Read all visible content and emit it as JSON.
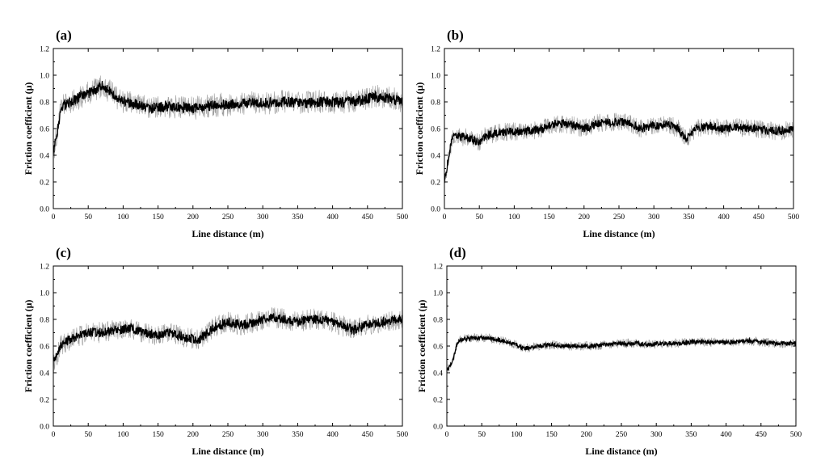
{
  "chart_data": [
    {
      "type": "line",
      "panel_label": "(a)",
      "xlabel": "Line distance (m)",
      "ylabel": "Friction coefficient (μ)",
      "xlim": [
        0,
        500
      ],
      "ylim": [
        0,
        1.2
      ],
      "xticks": [
        0,
        50,
        100,
        150,
        200,
        250,
        300,
        350,
        400,
        450,
        500
      ],
      "yticks": [
        0.0,
        0.2,
        0.4,
        0.6,
        0.8,
        1.0,
        1.2
      ],
      "x": [
        0,
        5,
        10,
        15,
        25,
        40,
        55,
        70,
        85,
        100,
        120,
        140,
        160,
        180,
        200,
        220,
        240,
        260,
        280,
        300,
        320,
        340,
        360,
        380,
        400,
        420,
        440,
        460,
        480,
        500
      ],
      "values": [
        0.42,
        0.55,
        0.72,
        0.78,
        0.8,
        0.84,
        0.88,
        0.92,
        0.86,
        0.8,
        0.78,
        0.75,
        0.77,
        0.76,
        0.75,
        0.77,
        0.78,
        0.78,
        0.79,
        0.79,
        0.8,
        0.8,
        0.79,
        0.8,
        0.8,
        0.8,
        0.81,
        0.84,
        0.83,
        0.8
      ],
      "noise_amplitude": 0.09,
      "grid": false
    },
    {
      "type": "line",
      "panel_label": "(b)",
      "xlabel": "Line distance (m)",
      "ylabel": "Friction coefficient (μ)",
      "xlim": [
        0,
        500
      ],
      "ylim": [
        0,
        1.2
      ],
      "xticks": [
        0,
        50,
        100,
        150,
        200,
        250,
        300,
        350,
        400,
        450,
        500
      ],
      "yticks": [
        0.0,
        0.2,
        0.4,
        0.6,
        0.8,
        1.0,
        1.2
      ],
      "x": [
        0,
        5,
        10,
        15,
        25,
        40,
        50,
        60,
        80,
        100,
        120,
        140,
        160,
        180,
        200,
        220,
        240,
        260,
        280,
        300,
        320,
        335,
        345,
        360,
        380,
        400,
        420,
        440,
        460,
        480,
        500
      ],
      "values": [
        0.22,
        0.35,
        0.5,
        0.55,
        0.54,
        0.52,
        0.5,
        0.55,
        0.57,
        0.58,
        0.58,
        0.6,
        0.64,
        0.63,
        0.6,
        0.64,
        0.65,
        0.65,
        0.6,
        0.62,
        0.63,
        0.6,
        0.52,
        0.6,
        0.62,
        0.6,
        0.61,
        0.6,
        0.59,
        0.58,
        0.6
      ],
      "noise_amplitude": 0.07,
      "grid": false
    },
    {
      "type": "line",
      "panel_label": "(c)",
      "xlabel": "Line distance (m)",
      "ylabel": "Friction coefficient (μ)",
      "xlim": [
        0,
        500
      ],
      "ylim": [
        0,
        1.2
      ],
      "xticks": [
        0,
        50,
        100,
        150,
        200,
        250,
        300,
        350,
        400,
        450,
        500
      ],
      "yticks": [
        0.0,
        0.2,
        0.4,
        0.6,
        0.8,
        1.0,
        1.2
      ],
      "x": [
        0,
        5,
        10,
        20,
        30,
        50,
        70,
        90,
        110,
        130,
        150,
        170,
        190,
        210,
        230,
        250,
        270,
        290,
        310,
        330,
        350,
        370,
        390,
        410,
        430,
        450,
        470,
        490,
        500
      ],
      "values": [
        0.48,
        0.52,
        0.6,
        0.64,
        0.66,
        0.7,
        0.7,
        0.72,
        0.73,
        0.7,
        0.68,
        0.7,
        0.66,
        0.65,
        0.74,
        0.78,
        0.76,
        0.78,
        0.82,
        0.8,
        0.78,
        0.8,
        0.8,
        0.76,
        0.72,
        0.76,
        0.78,
        0.8,
        0.8
      ],
      "noise_amplitude": 0.08,
      "grid": false
    },
    {
      "type": "line",
      "panel_label": "(d)",
      "xlabel": "Line distance (m)",
      "ylabel": "Friction coefficient (μ)",
      "xlim": [
        0,
        500
      ],
      "ylim": [
        0,
        1.2
      ],
      "xticks": [
        0,
        50,
        100,
        150,
        200,
        250,
        300,
        350,
        400,
        450,
        500
      ],
      "yticks": [
        0.0,
        0.2,
        0.4,
        0.6,
        0.8,
        1.0,
        1.2
      ],
      "x": [
        0,
        5,
        10,
        15,
        20,
        40,
        60,
        80,
        100,
        110,
        130,
        150,
        170,
        190,
        210,
        230,
        250,
        270,
        290,
        310,
        330,
        350,
        370,
        390,
        410,
        430,
        450,
        470,
        490,
        500
      ],
      "values": [
        0.42,
        0.45,
        0.52,
        0.62,
        0.65,
        0.66,
        0.66,
        0.64,
        0.61,
        0.58,
        0.6,
        0.61,
        0.6,
        0.6,
        0.6,
        0.61,
        0.62,
        0.62,
        0.61,
        0.62,
        0.62,
        0.63,
        0.63,
        0.63,
        0.63,
        0.64,
        0.63,
        0.62,
        0.62,
        0.62
      ],
      "noise_amplitude": 0.035,
      "grid": false
    }
  ]
}
